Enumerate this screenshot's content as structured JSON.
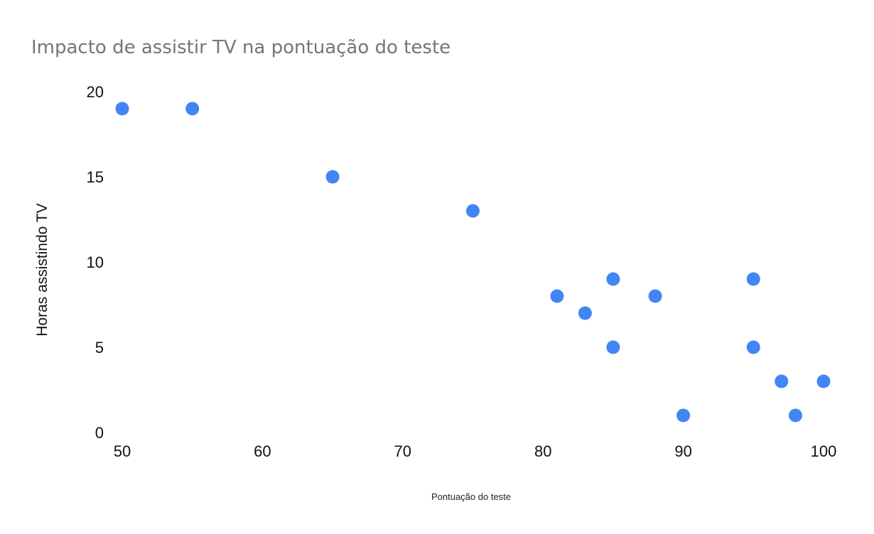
{
  "chart_data": {
    "type": "scatter",
    "title": "Impacto de assistir TV na pontuação do teste",
    "xlabel": "Pontuação do teste",
    "ylabel": "Horas assistindo TV",
    "xlim": [
      50,
      100
    ],
    "ylim": [
      0,
      20
    ],
    "x_ticks": [
      "50",
      "60",
      "70",
      "80",
      "90",
      "100"
    ],
    "y_ticks": [
      "0",
      "5",
      "10",
      "15",
      "20"
    ],
    "grid": false,
    "legend": "none",
    "point_color": "#4285F4",
    "points": [
      {
        "x": 50,
        "y": 19
      },
      {
        "x": 55,
        "y": 19
      },
      {
        "x": 65,
        "y": 15
      },
      {
        "x": 75,
        "y": 13
      },
      {
        "x": 81,
        "y": 8
      },
      {
        "x": 83,
        "y": 7
      },
      {
        "x": 85,
        "y": 9
      },
      {
        "x": 85,
        "y": 5
      },
      {
        "x": 88,
        "y": 8
      },
      {
        "x": 90,
        "y": 1
      },
      {
        "x": 95,
        "y": 9
      },
      {
        "x": 95,
        "y": 5
      },
      {
        "x": 97,
        "y": 3
      },
      {
        "x": 98,
        "y": 1
      },
      {
        "x": 100,
        "y": 3
      }
    ]
  }
}
